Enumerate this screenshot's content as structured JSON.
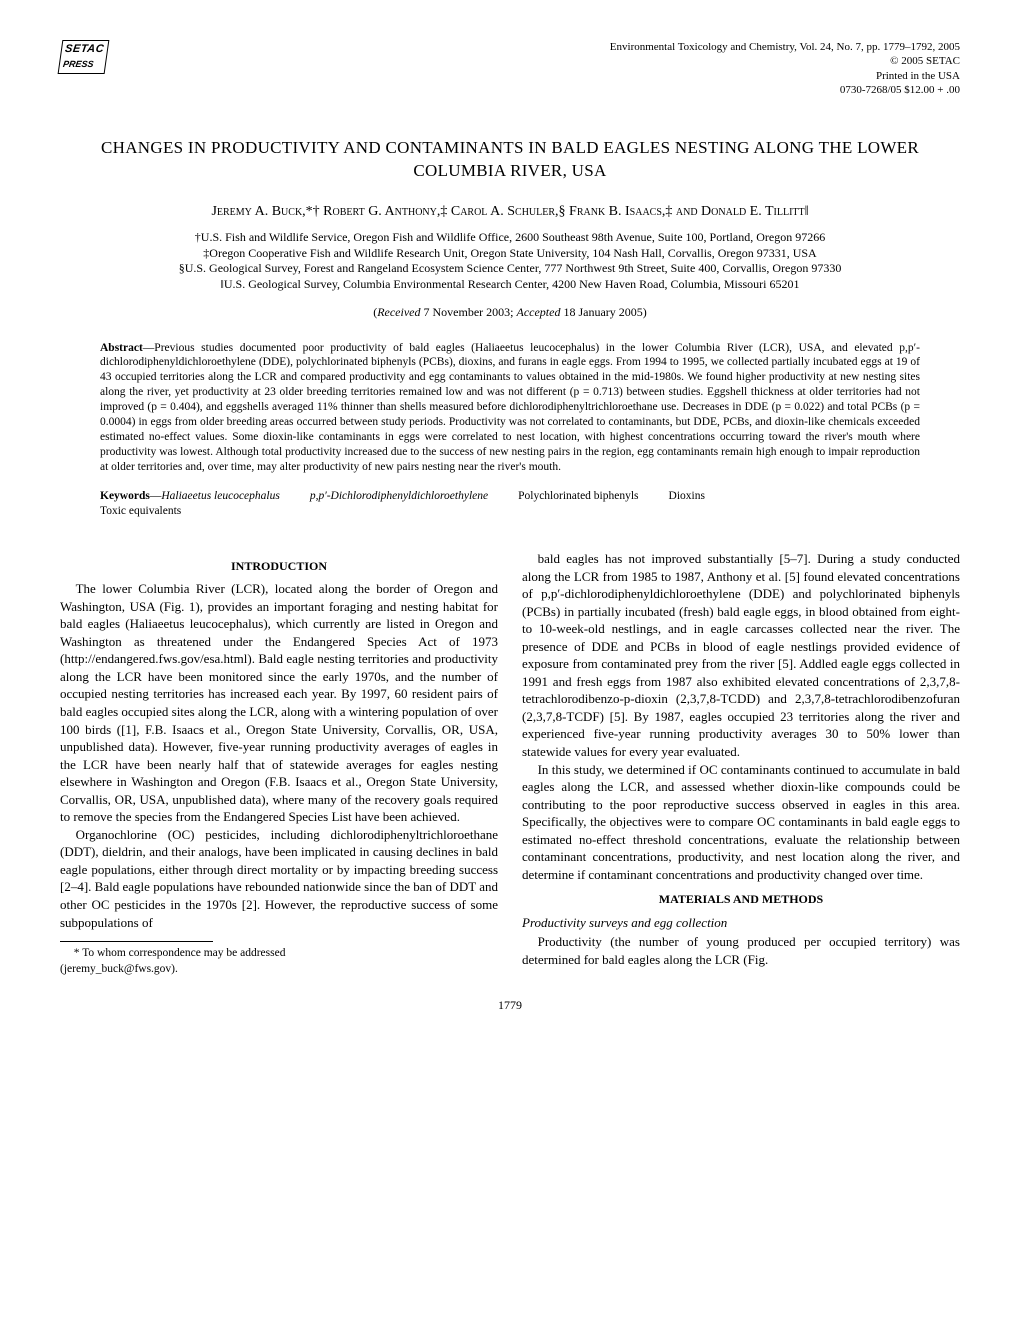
{
  "journal_header": {
    "line1": "Environmental Toxicology and Chemistry, Vol. 24, No. 7, pp. 1779–1792, 2005",
    "line2": "© 2005 SETAC",
    "line3": "Printed in the USA",
    "line4": "0730-7268/05 $12.00 + .00"
  },
  "logo": {
    "setac": "SETAC",
    "press": "PRESS"
  },
  "title": "CHANGES IN PRODUCTIVITY AND CONTAMINANTS IN BALD EAGLES NESTING ALONG THE LOWER COLUMBIA RIVER, USA",
  "authors": "Jeremy A. Buck,*† Robert G. Anthony,‡ Carol A. Schuler,§ Frank B. Isaacs,‡ and Donald E. Tillitt‖",
  "affiliations": {
    "a1": "†U.S. Fish and Wildlife Service, Oregon Fish and Wildlife Office, 2600 Southeast 98th Avenue, Suite 100, Portland, Oregon 97266",
    "a2": "‡Oregon Cooperative Fish and Wildlife Research Unit, Oregon State University, 104 Nash Hall, Corvallis, Oregon 97331, USA",
    "a3": "§U.S. Geological Survey, Forest and Rangeland Ecosystem Science Center, 777 Northwest 9th Street, Suite 400, Corvallis, Oregon 97330",
    "a4": "‖U.S. Geological Survey, Columbia Environmental Research Center, 4200 New Haven Road, Columbia, Missouri 65201"
  },
  "dates": "(Received 7 November 2003; Accepted 18 January 2005)",
  "abstract": {
    "label": "Abstract",
    "text": "—Previous studies documented poor productivity of bald eagles (Haliaeetus leucocephalus) in the lower Columbia River (LCR), USA, and elevated p,p′-dichlorodiphenyldichloroethylene (DDE), polychlorinated biphenyls (PCBs), dioxins, and furans in eagle eggs. From 1994 to 1995, we collected partially incubated eggs at 19 of 43 occupied territories along the LCR and compared productivity and egg contaminants to values obtained in the mid-1980s. We found higher productivity at new nesting sites along the river, yet productivity at 23 older breeding territories remained low and was not different (p = 0.713) between studies. Eggshell thickness at older territories had not improved (p = 0.404), and eggshells averaged 11% thinner than shells measured before dichlorodiphenyltrichloroethane use. Decreases in DDE (p = 0.022) and total PCBs (p = 0.0004) in eggs from older breeding areas occurred between study periods. Productivity was not correlated to contaminants, but DDE, PCBs, and dioxin-like chemicals exceeded estimated no-effect values. Some dioxin-like contaminants in eggs were correlated to nest location, with highest concentrations occurring toward the river's mouth where productivity was lowest. Although total productivity increased due to the success of new nesting pairs in the region, egg contaminants remain high enough to impair reproduction at older territories and, over time, may alter productivity of new pairs nesting near the river's mouth."
  },
  "keywords": {
    "label": "Keywords",
    "k1": "Haliaeetus leucocephalus",
    "k2": "p,p′-Dichlorodiphenyldichloroethylene",
    "k3": "Polychlorinated biphenyls",
    "k4": "Dioxins",
    "k5": "Toxic equivalents"
  },
  "sections": {
    "intro_heading": "INTRODUCTION",
    "intro_p1": "The lower Columbia River (LCR), located along the border of Oregon and Washington, USA (Fig. 1), provides an important foraging and nesting habitat for bald eagles (Haliaeetus leucocephalus), which currently are listed in Oregon and Washington as threatened under the Endangered Species Act of 1973 (http://endangered.fws.gov/esa.html). Bald eagle nesting territories and productivity along the LCR have been monitored since the early 1970s, and the number of occupied nesting territories has increased each year. By 1997, 60 resident pairs of bald eagles occupied sites along the LCR, along with a wintering population of over 100 birds ([1], F.B. Isaacs et al., Oregon State University, Corvallis, OR, USA, unpublished data). However, five-year running productivity averages of eagles in the LCR have been nearly half that of statewide averages for eagles nesting elsewhere in Washington and Oregon (F.B. Isaacs et al., Oregon State University, Corvallis, OR, USA, unpublished data), where many of the recovery goals required to remove the species from the Endangered Species List have been achieved.",
    "intro_p2": "Organochlorine (OC) pesticides, including dichlorodiphenyltrichloroethane (DDT), dieldrin, and their analogs, have been implicated in causing declines in bald eagle populations, either through direct mortality or by impacting breeding success [2–4]. Bald eagle populations have rebounded nationwide since the ban of DDT and other OC pesticides in the 1970s [2]. However, the reproductive success of some subpopulations of",
    "intro_p3": "bald eagles has not improved substantially [5–7]. During a study conducted along the LCR from 1985 to 1987, Anthony et al. [5] found elevated concentrations of p,p′-dichlorodiphenyldichloroethylene (DDE) and polychlorinated biphenyls (PCBs) in partially incubated (fresh) bald eagle eggs, in blood obtained from eight- to 10-week-old nestlings, and in eagle carcasses collected near the river. The presence of DDE and PCBs in blood of eagle nestlings provided evidence of exposure from contaminated prey from the river [5]. Addled eagle eggs collected in 1991 and fresh eggs from 1987 also exhibited elevated concentrations of 2,3,7,8-tetrachlorodibenzo-p-dioxin (2,3,7,8-TCDD) and 2,3,7,8-tetrachlorodibenzofuran (2,3,7,8-TCDF) [5]. By 1987, eagles occupied 23 territories along the river and experienced five-year running productivity averages 30 to 50% lower than statewide values for every year evaluated.",
    "intro_p4": "In this study, we determined if OC contaminants continued to accumulate in bald eagles along the LCR, and assessed whether dioxin-like compounds could be contributing to the poor reproductive success observed in eagles in this area. Specifically, the objectives were to compare OC contaminants in bald eagle eggs to estimated no-effect threshold concentrations, evaluate the relationship between contaminant concentrations, productivity, and nest location along the river, and determine if contaminant concentrations and productivity changed over time.",
    "mm_heading": "MATERIALS AND METHODS",
    "mm_sub1": "Productivity surveys and egg collection",
    "mm_p1": "Productivity (the number of young produced per occupied territory) was determined for bald eagles along the LCR (Fig."
  },
  "footnote": {
    "line1": "* To whom correspondence may be addressed",
    "line2": "(jeremy_buck@fws.gov)."
  },
  "page_number": "1779"
}
